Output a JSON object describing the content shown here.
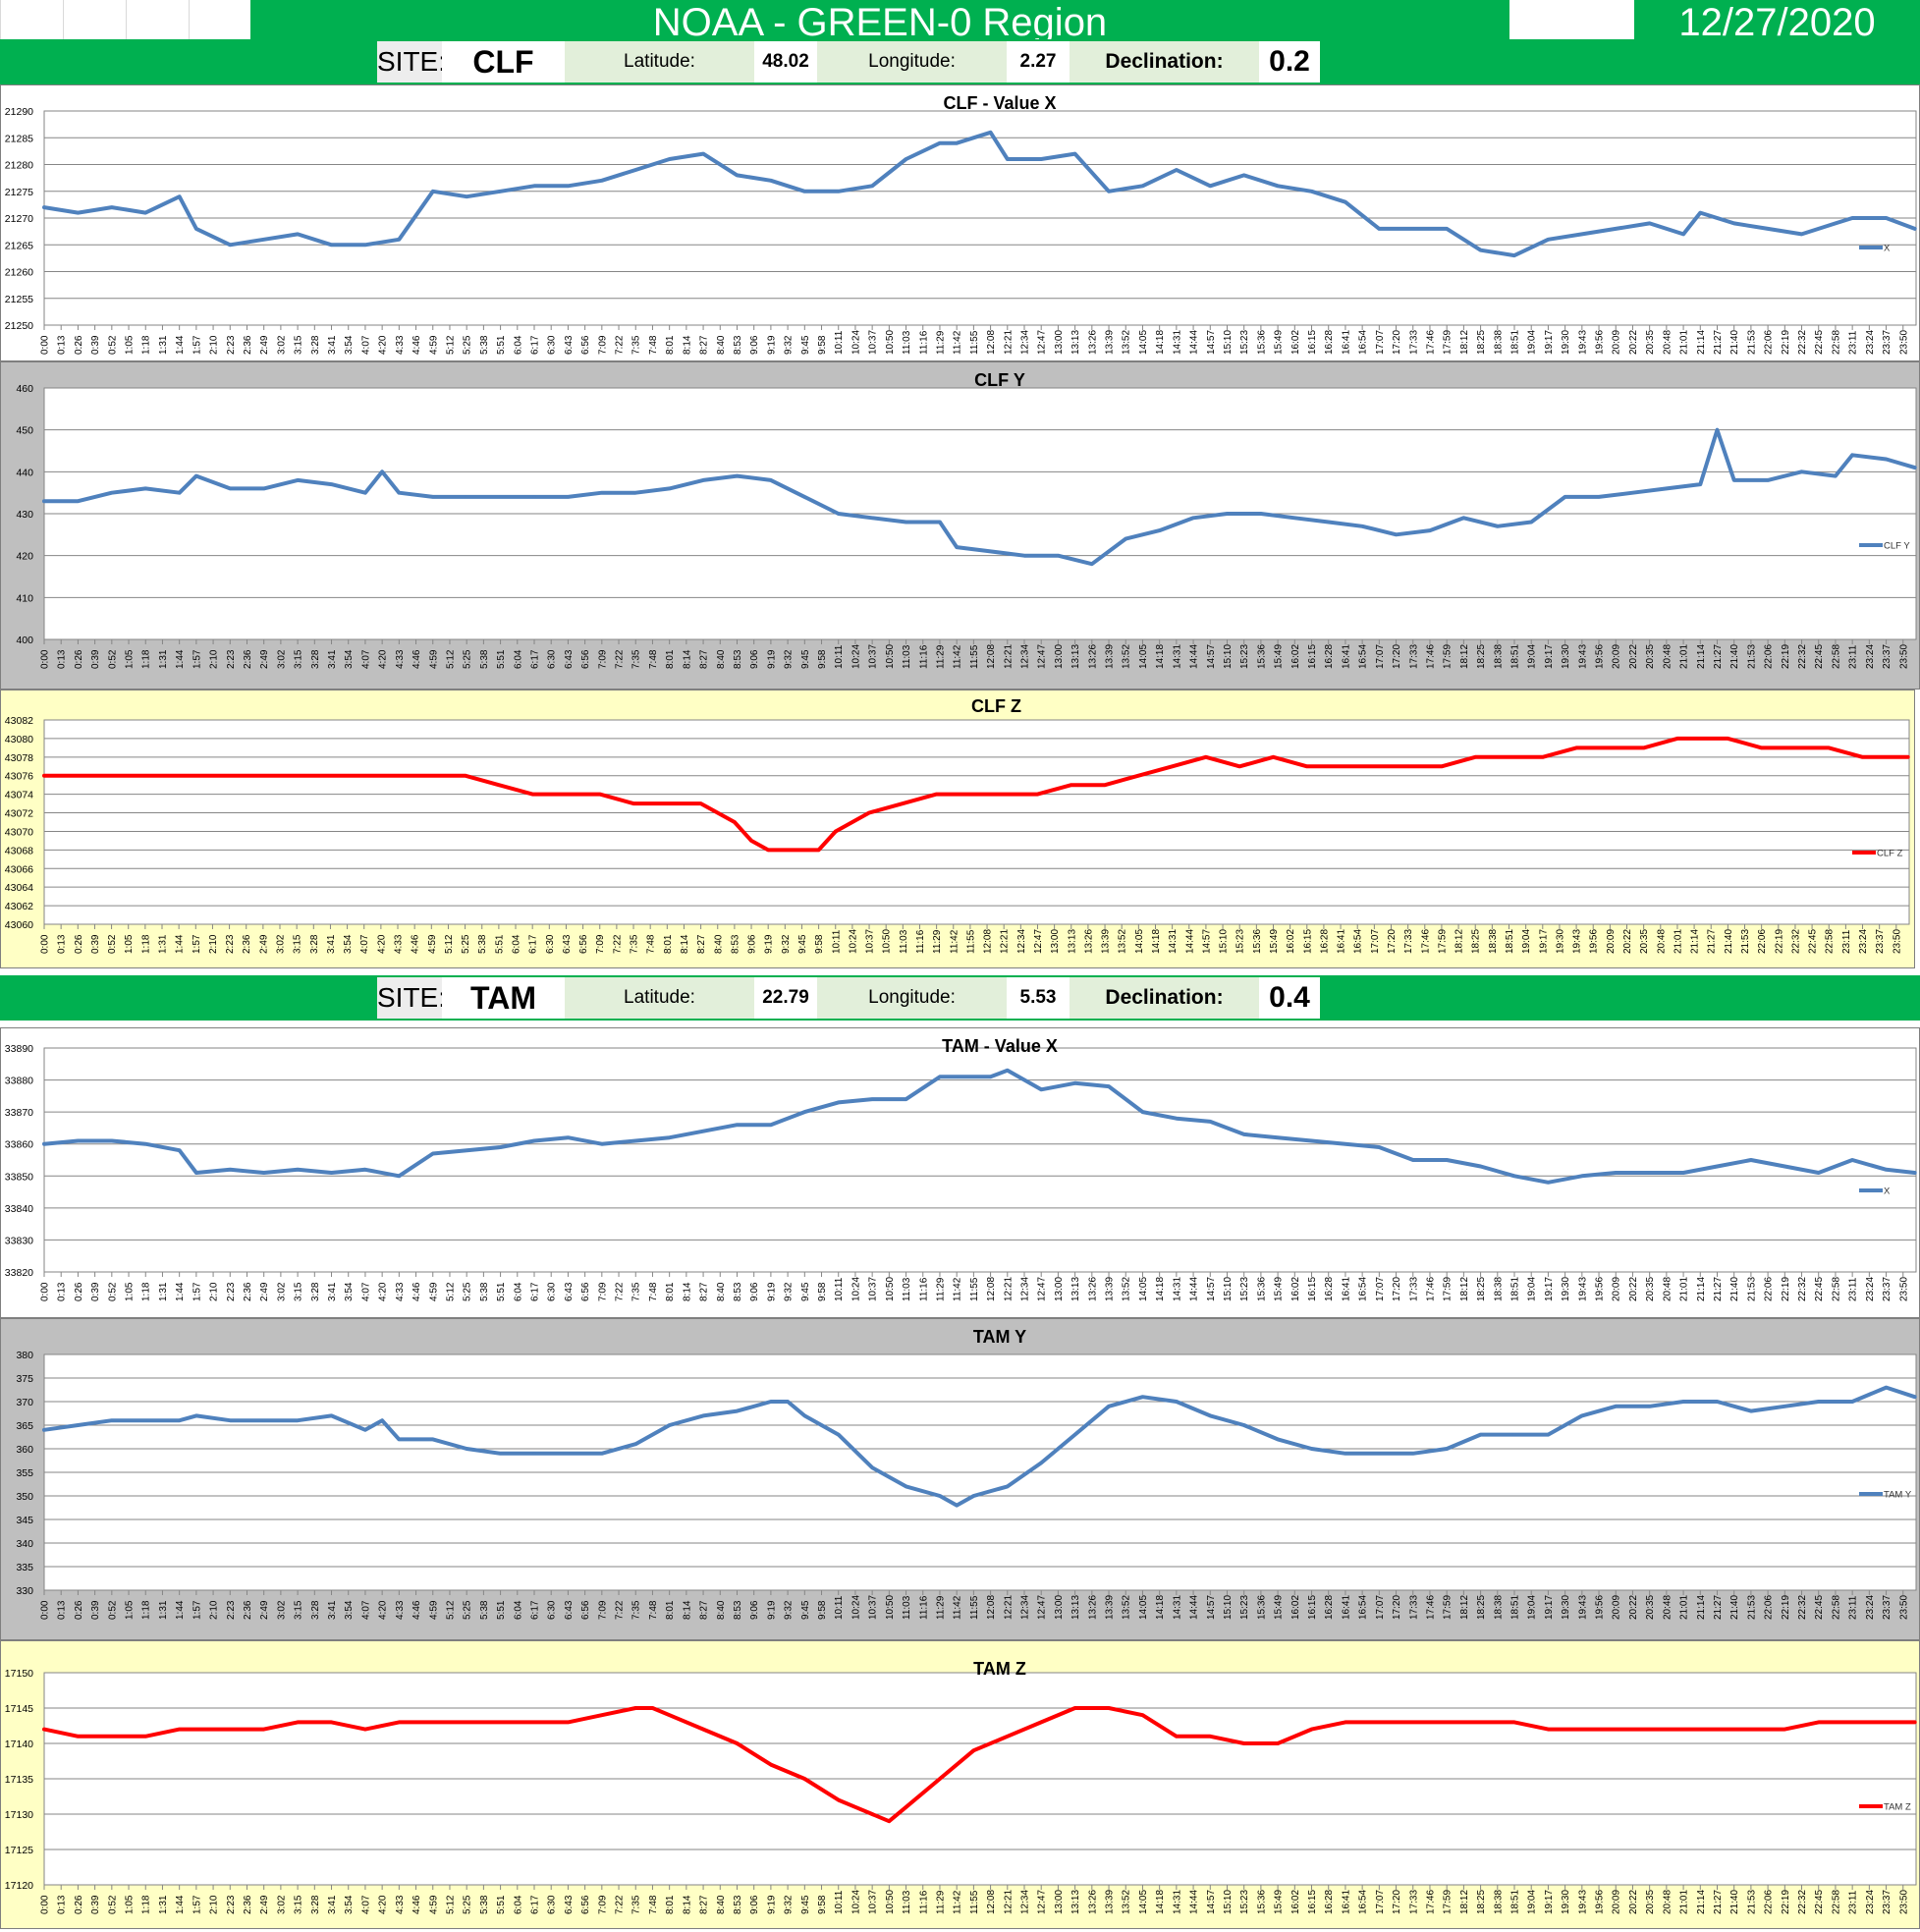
{
  "header": {
    "title": "NOAA - GREEN-0 Region",
    "date": "12/27/2020"
  },
  "sites": [
    {
      "site_label": "SITE:",
      "site": "CLF",
      "lat_label": "Latitude:",
      "lat": "48.02",
      "lon_label": "Longitude:",
      "lon": "2.27",
      "decl_label": "Declination:",
      "decl": "0.2"
    },
    {
      "site_label": "SITE:",
      "site": "TAM",
      "lat_label": "Latitude:",
      "lat": "22.79",
      "lon_label": "Longitude:",
      "lon": "5.53",
      "decl_label": "Declination:",
      "decl": "0.4"
    }
  ],
  "colors": {
    "green": "#00b050",
    "blue": "#4f81bd",
    "red": "#ff0000",
    "gray_bg": "#bfbfbf",
    "yellow_bg": "#ffffc5",
    "white_bg": "#ffffff"
  },
  "x_tick_labels": [
    "0:00",
    "0:13",
    "0:26",
    "0:39",
    "0:52",
    "1:05",
    "1:18",
    "1:31",
    "1:44",
    "1:57",
    "2:10",
    "2:23",
    "2:36",
    "2:49",
    "3:02",
    "3:15",
    "3:28",
    "3:41",
    "3:54",
    "4:07",
    "4:20",
    "4:33",
    "4:46",
    "4:59",
    "5:12",
    "5:25",
    "5:38",
    "5:51",
    "6:04",
    "6:17",
    "6:30",
    "6:43",
    "6:56",
    "7:09",
    "7:22",
    "7:35",
    "7:48",
    "8:01",
    "8:14",
    "8:27",
    "8:40",
    "8:53",
    "9:06",
    "9:19",
    "9:32",
    "9:45",
    "9:58",
    "10:11",
    "10:24",
    "10:37",
    "10:50",
    "11:03",
    "11:16",
    "11:29",
    "11:42",
    "11:55",
    "12:08",
    "12:21",
    "12:34",
    "12:47",
    "13:00",
    "13:13",
    "13:26",
    "13:39",
    "13:52",
    "14:05",
    "14:18",
    "14:31",
    "14:44",
    "14:57",
    "15:10",
    "15:23",
    "15:36",
    "15:49",
    "16:02",
    "16:15",
    "16:28",
    "16:41",
    "16:54",
    "17:07",
    "17:20",
    "17:33",
    "17:46",
    "17:59",
    "18:12",
    "18:25",
    "18:38",
    "18:51",
    "19:04",
    "19:17",
    "19:30",
    "19:43",
    "19:56",
    "20:09",
    "20:22",
    "20:35",
    "20:48",
    "21:01",
    "21:14",
    "21:27",
    "21:40",
    "21:53",
    "22:06",
    "22:19",
    "22:32",
    "22:45",
    "22:58",
    "23:11",
    "23:24",
    "23:37",
    "23:50"
  ],
  "chart_data": [
    {
      "type": "line",
      "title": "CLF - Value X",
      "series": [
        {
          "name": "X",
          "color": "#4f81bd"
        }
      ],
      "ylim": [
        21250,
        21290
      ],
      "ystep": 5,
      "bg": "white",
      "x": [
        "0:00",
        "0:26",
        "0:52",
        "1:18",
        "1:44",
        "1:57",
        "2:23",
        "2:49",
        "3:15",
        "3:41",
        "4:07",
        "4:33",
        "4:59",
        "5:25",
        "5:51",
        "6:17",
        "6:43",
        "7:09",
        "7:35",
        "8:01",
        "8:27",
        "8:53",
        "9:19",
        "9:45",
        "10:11",
        "10:37",
        "11:03",
        "11:29",
        "11:42",
        "12:08",
        "12:21",
        "12:47",
        "13:13",
        "13:39",
        "14:05",
        "14:31",
        "14:57",
        "15:23",
        "15:49",
        "16:15",
        "16:41",
        "17:07",
        "17:33",
        "17:59",
        "18:25",
        "18:51",
        "19:17",
        "19:43",
        "20:09",
        "20:35",
        "21:01",
        "21:14",
        "21:27",
        "21:40",
        "22:06",
        "22:32",
        "22:58",
        "23:11",
        "23:37",
        "23:59"
      ],
      "values": [
        21272,
        21271,
        21272,
        21271,
        21274,
        21268,
        21265,
        21266,
        21267,
        21265,
        21265,
        21266,
        21275,
        21274,
        21275,
        21276,
        21276,
        21277,
        21279,
        21281,
        21282,
        21278,
        21277,
        21275,
        21275,
        21276,
        21281,
        21284,
        21284,
        21286,
        21281,
        21281,
        21282,
        21275,
        21276,
        21279,
        21276,
        21278,
        21276,
        21275,
        21273,
        21268,
        21268,
        21268,
        21264,
        21263,
        21266,
        21267,
        21268,
        21269,
        21267,
        21271,
        21270,
        21269,
        21268,
        21267,
        21269,
        21270,
        21270,
        21268
      ]
    },
    {
      "type": "line",
      "title": "CLF Y",
      "series": [
        {
          "name": "CLF Y",
          "color": "#4f81bd"
        }
      ],
      "ylim": [
        400,
        460
      ],
      "ystep": 10,
      "bg": "gray",
      "x": [
        "0:00",
        "0:26",
        "0:52",
        "1:18",
        "1:44",
        "1:57",
        "2:23",
        "2:49",
        "3:15",
        "3:41",
        "4:07",
        "4:20",
        "4:33",
        "4:59",
        "5:25",
        "5:51",
        "6:17",
        "6:43",
        "7:09",
        "7:35",
        "8:01",
        "8:27",
        "8:53",
        "9:19",
        "9:45",
        "10:11",
        "10:37",
        "11:03",
        "11:29",
        "11:42",
        "12:08",
        "12:34",
        "13:00",
        "13:26",
        "13:52",
        "14:18",
        "14:44",
        "15:10",
        "15:36",
        "16:02",
        "16:28",
        "16:54",
        "17:20",
        "17:46",
        "18:12",
        "18:38",
        "19:04",
        "19:30",
        "19:56",
        "20:22",
        "20:48",
        "21:14",
        "21:27",
        "21:40",
        "22:06",
        "22:32",
        "22:58",
        "23:11",
        "23:37",
        "23:59"
      ],
      "values": [
        433,
        433,
        435,
        436,
        435,
        439,
        436,
        436,
        438,
        437,
        435,
        440,
        435,
        434,
        434,
        434,
        434,
        434,
        435,
        435,
        436,
        438,
        439,
        438,
        434,
        430,
        429,
        428,
        428,
        422,
        421,
        420,
        420,
        418,
        424,
        426,
        429,
        430,
        430,
        429,
        428,
        427,
        425,
        426,
        429,
        427,
        428,
        434,
        434,
        435,
        436,
        437,
        450,
        438,
        438,
        440,
        439,
        444,
        443,
        441
      ]
    },
    {
      "type": "line",
      "title": "CLF Z",
      "series": [
        {
          "name": "CLF Z",
          "color": "#ff0000"
        }
      ],
      "ylim": [
        43060,
        43082
      ],
      "ystep": 2,
      "bg": "yellow",
      "x": [
        "0:00",
        "0:26",
        "0:52",
        "1:18",
        "1:44",
        "1:57",
        "2:23",
        "2:49",
        "3:15",
        "3:41",
        "4:07",
        "4:33",
        "4:59",
        "5:25",
        "5:51",
        "6:17",
        "6:43",
        "7:09",
        "7:35",
        "8:01",
        "8:27",
        "8:53",
        "9:06",
        "9:19",
        "9:32",
        "9:45",
        "9:58",
        "10:11",
        "10:24",
        "10:37",
        "11:03",
        "11:29",
        "11:55",
        "12:21",
        "12:47",
        "13:13",
        "13:39",
        "14:05",
        "14:31",
        "14:57",
        "15:23",
        "15:49",
        "16:15",
        "16:41",
        "17:07",
        "17:33",
        "17:59",
        "18:25",
        "18:51",
        "19:17",
        "19:43",
        "20:09",
        "20:35",
        "21:01",
        "21:27",
        "21:40",
        "22:06",
        "22:32",
        "22:58",
        "23:24",
        "23:59"
      ],
      "values": [
        43076,
        43076,
        43076,
        43076,
        43076,
        43076,
        43076,
        43076,
        43076,
        43076,
        43076,
        43076,
        43076,
        43076,
        43075,
        43074,
        43074,
        43074,
        43073,
        43073,
        43073,
        43071,
        43069,
        43068,
        43068,
        43068,
        43068,
        43070,
        43071,
        43072,
        43073,
        43074,
        43074,
        43074,
        43074,
        43075,
        43075,
        43076,
        43077,
        43078,
        43077,
        43078,
        43077,
        43077,
        43077,
        43077,
        43077,
        43078,
        43078,
        43078,
        43079,
        43079,
        43079,
        43080,
        43080,
        43080,
        43079,
        43079,
        43079,
        43078,
        43078
      ]
    },
    {
      "type": "line",
      "title": "TAM - Value X",
      "series": [
        {
          "name": "X",
          "color": "#4f81bd"
        }
      ],
      "ylim": [
        33820,
        33890
      ],
      "ystep": 10,
      "bg": "white",
      "x": [
        "0:00",
        "0:26",
        "0:52",
        "1:18",
        "1:44",
        "1:57",
        "2:23",
        "2:49",
        "3:15",
        "3:41",
        "4:07",
        "4:33",
        "4:59",
        "5:25",
        "5:51",
        "6:17",
        "6:43",
        "7:09",
        "7:35",
        "8:01",
        "8:27",
        "8:53",
        "9:19",
        "9:45",
        "10:11",
        "10:37",
        "11:03",
        "11:29",
        "11:42",
        "12:08",
        "12:21",
        "12:47",
        "13:13",
        "13:39",
        "14:05",
        "14:31",
        "14:57",
        "15:23",
        "15:49",
        "16:15",
        "16:41",
        "17:07",
        "17:33",
        "17:59",
        "18:25",
        "18:51",
        "19:17",
        "19:43",
        "20:09",
        "20:35",
        "21:01",
        "21:27",
        "21:53",
        "22:19",
        "22:45",
        "23:11",
        "23:37",
        "23:59"
      ],
      "values": [
        33860,
        33861,
        33861,
        33860,
        33858,
        33851,
        33852,
        33851,
        33852,
        33851,
        33852,
        33850,
        33857,
        33858,
        33859,
        33861,
        33862,
        33860,
        33861,
        33862,
        33864,
        33866,
        33866,
        33870,
        33873,
        33874,
        33874,
        33881,
        33881,
        33881,
        33883,
        33877,
        33879,
        33878,
        33870,
        33868,
        33867,
        33863,
        33862,
        33861,
        33860,
        33859,
        33855,
        33855,
        33853,
        33850,
        33848,
        33850,
        33851,
        33851,
        33851,
        33853,
        33855,
        33853,
        33851,
        33855,
        33852,
        33851
      ]
    },
    {
      "type": "line",
      "title": "TAM Y",
      "series": [
        {
          "name": "TAM Y",
          "color": "#4f81bd"
        }
      ],
      "ylim": [
        330,
        380
      ],
      "ystep": 5,
      "bg": "gray",
      "x": [
        "0:00",
        "0:26",
        "0:52",
        "1:18",
        "1:44",
        "1:57",
        "2:23",
        "2:49",
        "3:15",
        "3:41",
        "4:07",
        "4:20",
        "4:33",
        "4:59",
        "5:25",
        "5:51",
        "6:17",
        "6:43",
        "7:09",
        "7:35",
        "8:01",
        "8:27",
        "8:53",
        "9:19",
        "9:32",
        "9:45",
        "10:11",
        "10:37",
        "11:03",
        "11:29",
        "11:42",
        "11:55",
        "12:21",
        "12:47",
        "13:13",
        "13:39",
        "14:05",
        "14:31",
        "14:57",
        "15:23",
        "15:49",
        "16:15",
        "16:41",
        "17:07",
        "17:33",
        "17:59",
        "18:25",
        "18:51",
        "19:17",
        "19:43",
        "20:09",
        "20:35",
        "21:01",
        "21:27",
        "21:53",
        "22:19",
        "22:45",
        "23:11",
        "23:37",
        "23:59"
      ],
      "values": [
        364,
        365,
        366,
        366,
        366,
        367,
        366,
        366,
        366,
        367,
        364,
        366,
        362,
        362,
        360,
        359,
        359,
        359,
        359,
        361,
        365,
        367,
        368,
        370,
        370,
        367,
        363,
        356,
        352,
        350,
        348,
        350,
        352,
        357,
        363,
        369,
        371,
        370,
        367,
        365,
        362,
        360,
        359,
        359,
        359,
        360,
        363,
        363,
        363,
        367,
        369,
        369,
        370,
        370,
        368,
        369,
        370,
        370,
        373,
        371
      ]
    },
    {
      "type": "line",
      "title": "TAM Z",
      "series": [
        {
          "name": "TAM Z",
          "color": "#ff0000"
        }
      ],
      "ylim": [
        17120,
        17150
      ],
      "ystep": 5,
      "bg": "yellow",
      "x": [
        "0:00",
        "0:26",
        "0:52",
        "1:18",
        "1:44",
        "1:57",
        "2:23",
        "2:49",
        "3:15",
        "3:41",
        "4:07",
        "4:33",
        "4:59",
        "5:25",
        "5:51",
        "6:17",
        "6:43",
        "7:09",
        "7:35",
        "7:48",
        "8:01",
        "8:27",
        "8:53",
        "9:19",
        "9:45",
        "10:11",
        "10:24",
        "10:37",
        "10:50",
        "11:03",
        "11:29",
        "11:55",
        "12:21",
        "12:47",
        "13:13",
        "13:39",
        "14:05",
        "14:31",
        "14:57",
        "15:23",
        "15:49",
        "16:15",
        "16:41",
        "17:07",
        "17:33",
        "17:59",
        "18:25",
        "18:51",
        "19:17",
        "19:43",
        "20:09",
        "20:35",
        "21:01",
        "21:27",
        "21:53",
        "22:19",
        "22:45",
        "23:11",
        "23:37",
        "23:59"
      ],
      "values": [
        17142,
        17141,
        17141,
        17141,
        17142,
        17142,
        17142,
        17142,
        17143,
        17143,
        17142,
        17143,
        17143,
        17143,
        17143,
        17143,
        17143,
        17144,
        17145,
        17145,
        17144,
        17142,
        17140,
        17137,
        17135,
        17132,
        17131,
        17130,
        17129,
        17131,
        17135,
        17139,
        17141,
        17143,
        17145,
        17145,
        17144,
        17141,
        17141,
        17140,
        17140,
        17142,
        17143,
        17143,
        17143,
        17143,
        17143,
        17143,
        17142,
        17142,
        17142,
        17142,
        17142,
        17142,
        17142,
        17142,
        17143,
        17143,
        17143,
        17143
      ]
    }
  ]
}
